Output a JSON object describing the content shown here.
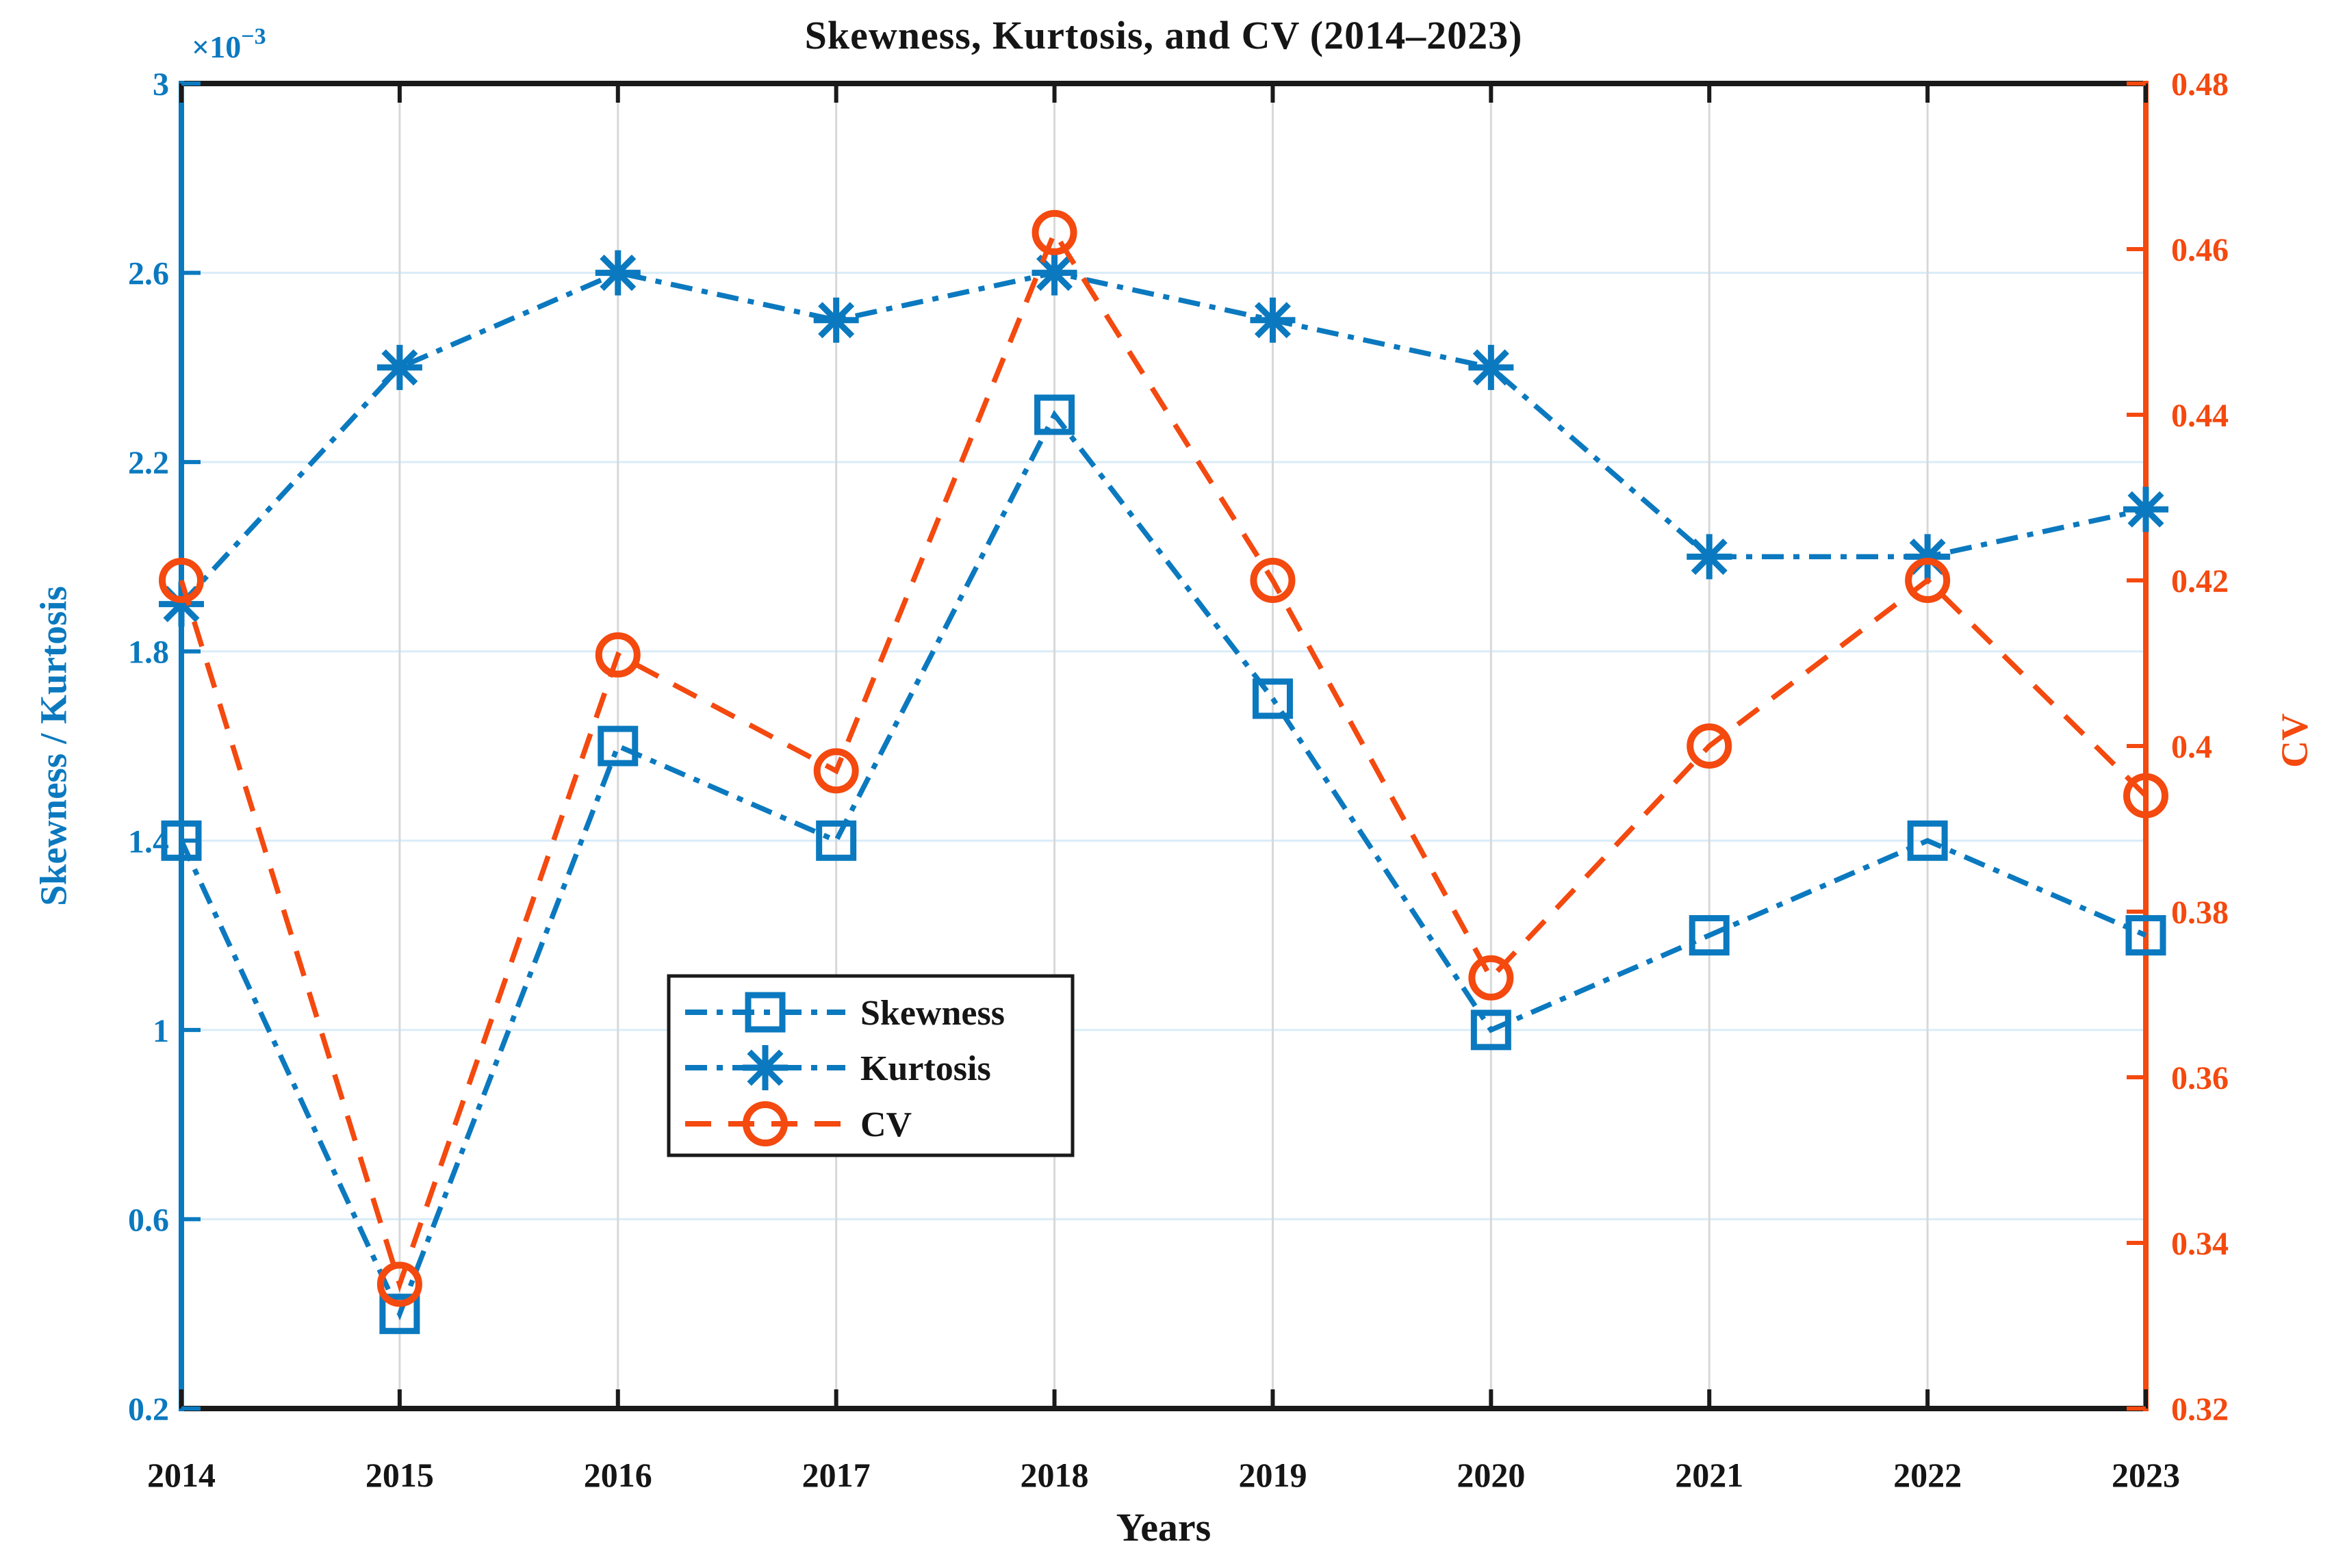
{
  "chart_data": {
    "type": "line",
    "title": "Skewness, Kurtosis, and CV (2014–2023)",
    "xlabel": "Years",
    "x_categories": [
      "2014",
      "2015",
      "2016",
      "2017",
      "2018",
      "2019",
      "2020",
      "2021",
      "2022",
      "2023"
    ],
    "left_axis": {
      "label": "Skewness / Kurtosis",
      "multiplier_base": "×10",
      "multiplier_exp": "−3",
      "min": 0.2,
      "max": 3,
      "ticks": [
        0.2,
        0.6,
        1,
        1.4,
        1.8,
        2.2,
        2.6,
        3
      ],
      "tick_labels": [
        "0.2",
        "0.6",
        "1",
        "1.4",
        "1.8",
        "2.2",
        "2.6",
        "3"
      ],
      "color": "#0b79bf"
    },
    "right_axis": {
      "label": "CV",
      "min": 0.32,
      "max": 0.48,
      "ticks": [
        0.32,
        0.34,
        0.36,
        0.38,
        0.4,
        0.42,
        0.44,
        0.46,
        0.48
      ],
      "tick_labels": [
        "0.32",
        "0.34",
        "0.36",
        "0.38",
        "0.4",
        "0.42",
        "0.44",
        "0.46",
        "0.48"
      ],
      "color": "#f4490f"
    },
    "series": [
      {
        "name": "Skewness",
        "axis": "left",
        "marker": "square",
        "linestyle": "dashdot",
        "color": "#0b79bf",
        "values": [
          1.4,
          0.4,
          1.6,
          1.4,
          2.3,
          1.7,
          1.0,
          1.2,
          1.4,
          1.2
        ]
      },
      {
        "name": "Kurtosis",
        "axis": "left",
        "marker": "asterisk",
        "linestyle": "dashdot",
        "color": "#0b79bf",
        "values": [
          1.9,
          2.4,
          2.6,
          2.5,
          2.6,
          2.5,
          2.4,
          2.0,
          2.0,
          2.1
        ]
      },
      {
        "name": "CV",
        "axis": "right",
        "marker": "circle",
        "linestyle": "dashed",
        "color": "#f4490f",
        "values": [
          0.42,
          0.335,
          0.411,
          0.397,
          0.462,
          0.42,
          0.372,
          0.4,
          0.42,
          0.394
        ]
      }
    ],
    "legend": {
      "labels": [
        "Skewness",
        "Kurtosis",
        "CV"
      ]
    },
    "grid": {
      "horizontal_color": "#d9ecf8",
      "vertical_color": "#d8d8d8"
    },
    "frame_color": "#1a1a1a",
    "ylim_left": [
      0.2,
      3
    ],
    "ylim_right": [
      0.32,
      0.48
    ]
  }
}
